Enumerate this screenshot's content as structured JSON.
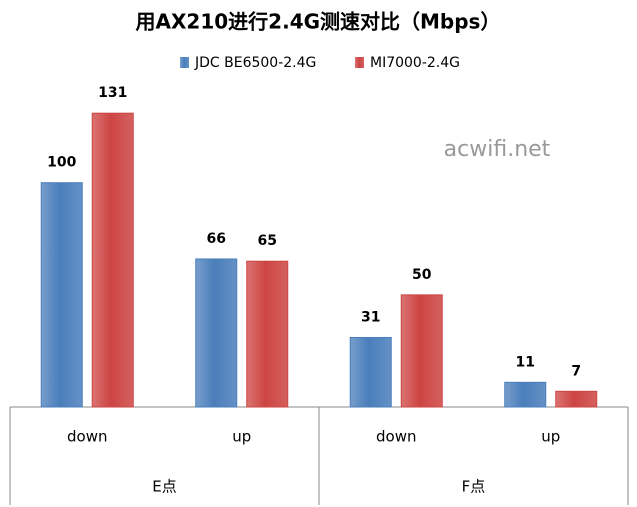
{
  "chart_data": {
    "type": "bar",
    "title": "用AX210进行2.4G测速对比（Mbps）",
    "categories": [
      "down",
      "up",
      "down",
      "up"
    ],
    "groups": [
      "E点",
      "F点"
    ],
    "series": [
      {
        "name": "JDC BE6500-2.4G",
        "color": "#4a7ebb",
        "values": [
          100,
          66,
          31,
          11
        ]
      },
      {
        "name": "MI7000-2.4G",
        "color": "#cd4543",
        "values": [
          131,
          65,
          50,
          7
        ]
      }
    ],
    "ylim": [
      0,
      140
    ],
    "annotation": "acwifi.net"
  }
}
